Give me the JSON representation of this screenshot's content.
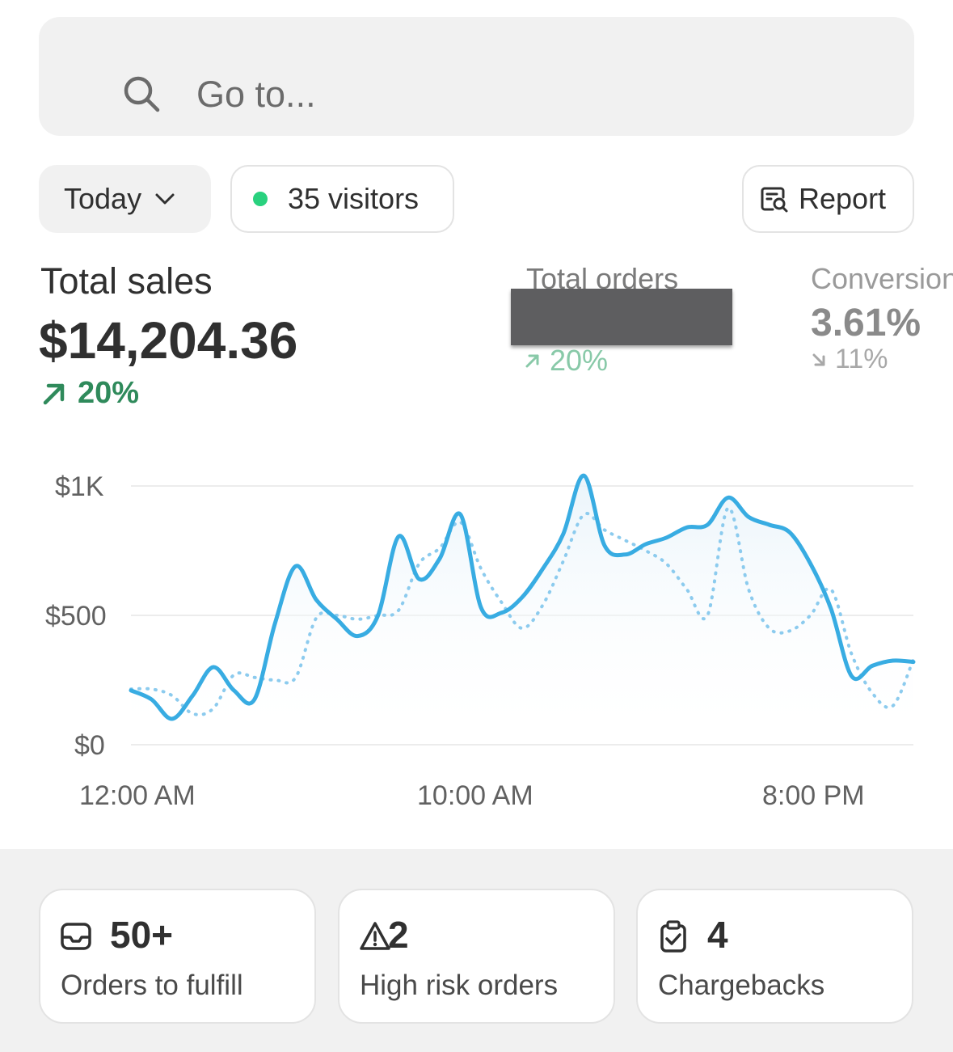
{
  "search": {
    "placeholder": "Go to..."
  },
  "filters": {
    "period_label": "Today",
    "visitors_label": "35 visitors",
    "report_label": "Report"
  },
  "metrics": {
    "total_sales": {
      "label": "Total sales",
      "value": "$14,204.36",
      "change": "20%",
      "direction": "up"
    },
    "total_orders": {
      "label": "Total orders",
      "change": "20%",
      "direction": "up"
    },
    "conversion": {
      "label": "Conversion",
      "value": "3.61%",
      "change": "11%",
      "direction": "down"
    }
  },
  "chart_data": {
    "type": "line",
    "y_tick_labels": [
      "$1K",
      "$500",
      "$0"
    ],
    "x_tick_labels": [
      "12:00 AM",
      "10:00 AM",
      "8:00 PM"
    ],
    "ylim": [
      0,
      1000
    ],
    "grid": true,
    "series": [
      {
        "style": "solid",
        "color": "#38ace2",
        "values": [
          210,
          175,
          100,
          190,
          300,
          210,
          175,
          470,
          690,
          560,
          485,
          420,
          500,
          805,
          640,
          720,
          890,
          530,
          510,
          570,
          680,
          815,
          1040,
          770,
          735,
          775,
          800,
          840,
          850,
          955,
          880,
          850,
          820,
          700,
          525,
          265,
          305,
          325,
          320
        ]
      },
      {
        "style": "dotted",
        "color": "#8ccbee",
        "values": [
          215,
          215,
          190,
          120,
          140,
          270,
          260,
          250,
          260,
          490,
          500,
          485,
          500,
          520,
          700,
          760,
          860,
          680,
          550,
          450,
          540,
          710,
          890,
          830,
          790,
          750,
          700,
          600,
          500,
          915,
          600,
          450,
          440,
          500,
          600,
          350,
          200,
          150,
          330
        ]
      }
    ]
  },
  "cards": [
    {
      "icon": "inbox-icon",
      "number": "50+",
      "label": "Orders to fulfill"
    },
    {
      "icon": "warning-icon",
      "number": "2",
      "label": "High risk orders"
    },
    {
      "icon": "clipboard-check-icon",
      "number": "4",
      "label": "Chargebacks"
    }
  ],
  "colors": {
    "accent_line": "#38ace2",
    "positive": "#2f8a5b",
    "status_dot": "#29d17e"
  }
}
